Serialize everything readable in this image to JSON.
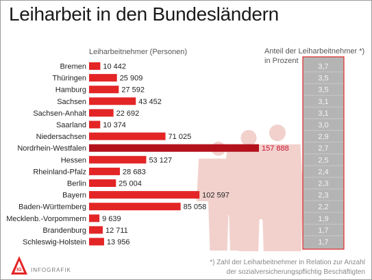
{
  "title": "Leiharbeit in den Bundesländern",
  "footnote": {
    "line1": "*) Zahl der Leiharbeitnehmer in Relation zur Anzahl",
    "line2": "der sozialversicherungspflichtig Beschäftigten"
  },
  "logo": {
    "mark": "IG",
    "label": "INFOGRAFIK"
  },
  "colors": {
    "bar": "#e32526",
    "bar_highlight": "#b3111c",
    "highlight_label": "#c8102e",
    "share_column": "#b4b4b4",
    "share_border": "#e32526",
    "figures": "#f2d1cd"
  },
  "decoration": {
    "figures_icon": "people-silhouettes-icon"
  },
  "chart_data": {
    "type": "bar",
    "orientation": "horizontal",
    "xlabel": "Leiharbeitnehmer (Personen)",
    "highlight_category": "Nordrhein-Westfalen",
    "categories": [
      "Bremen",
      "Thüringen",
      "Hamburg",
      "Sachsen",
      "Sachsen-Anhalt",
      "Saarland",
      "Niedersachsen",
      "Nordrhein-Westfalen",
      "Hessen",
      "Rheinland-Pfalz",
      "Berlin",
      "Bayern",
      "Baden-Württemberg",
      "Mecklenb.-Vorpommern",
      "Brandenburg",
      "Schleswig-Holstein"
    ],
    "values": [
      10442,
      25909,
      27592,
      43452,
      22692,
      10374,
      71025,
      157888,
      53127,
      28683,
      25004,
      102597,
      85058,
      9639,
      12711,
      13956
    ],
    "value_labels": [
      "10 442",
      "25 909",
      "27 592",
      "43 452",
      "22 692",
      "10 374",
      "71 025",
      "157 888",
      "53 127",
      "28 683",
      "25 004",
      "102 597",
      "85 058",
      "9 639",
      "12 711",
      "13 956"
    ],
    "share_label_line1": "Anteil der Leiharbeitnehmer *)",
    "share_label_line2": "in Prozent",
    "share_values": [
      3.7,
      3.5,
      3.5,
      3.1,
      3.1,
      3.0,
      2.9,
      2.7,
      2.5,
      2.4,
      2.3,
      2.3,
      2.2,
      1.9,
      1.7,
      1.7
    ],
    "share_labels": [
      "3,7",
      "3,5",
      "3,5",
      "3,1",
      "3,1",
      "3,0",
      "2,9",
      "2,7",
      "2,5",
      "2,4",
      "2,3",
      "2,3",
      "2,2",
      "1,9",
      "1,7",
      "1,7"
    ]
  }
}
